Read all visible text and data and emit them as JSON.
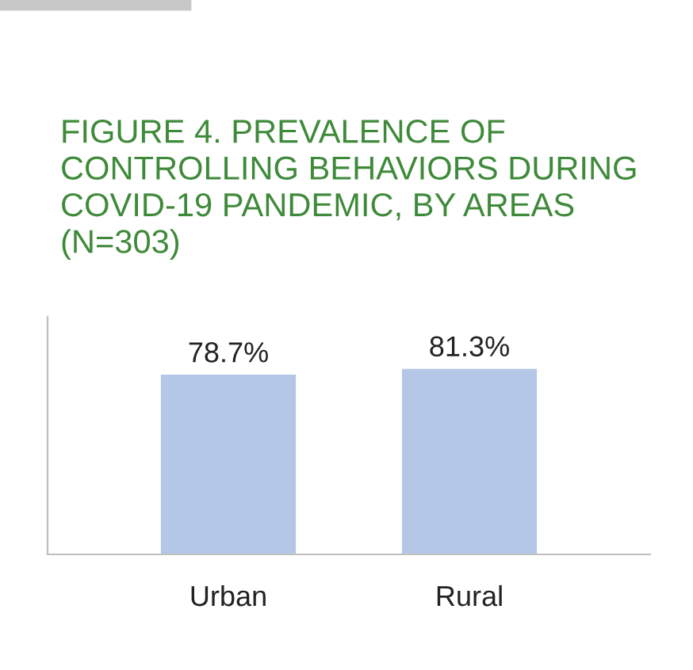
{
  "chart_data": {
    "type": "bar",
    "title": "FIGURE 4. PREVALENCE OF CONTROLLING BEHAVIORS DURING COVID-19 PANDEMIC, BY AREAS (N=303)",
    "categories": [
      "Urban",
      "Rural"
    ],
    "values": [
      78.7,
      81.3
    ],
    "value_labels": [
      "78.7%",
      "81.3%"
    ],
    "color": "#b4c7e7",
    "relative": false
  }
}
